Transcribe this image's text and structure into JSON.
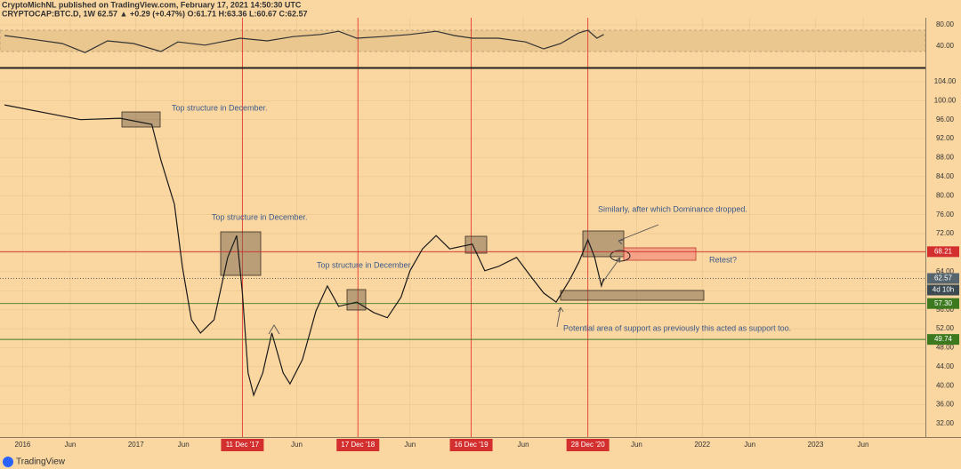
{
  "header": {
    "author": "CryptoMichNL published on TradingView.com, February 17, 2021 14:50:30 UTC",
    "symbol": "CRYPTOCAP:BTC.D, 1W 62.57 ▲ +0.29 (+0.47%) O:61.71 H:63.36 L:60.67 C:62.57"
  },
  "footer": {
    "logo": "TradingView"
  },
  "chart_data": [
    {
      "type": "line",
      "name": "RSI",
      "x": [
        2015.84,
        2016.12,
        2016.35,
        2016.55,
        2016.75,
        2016.98,
        2017.22,
        2017.37,
        2017.61,
        2017.92,
        2018.16,
        2018.39,
        2018.63,
        2018.79,
        2018.95,
        2019.18,
        2019.42,
        2019.65,
        2019.81,
        2019.97,
        2020.2,
        2020.44,
        2020.6,
        2020.75,
        2020.91,
        2020.99,
        2021.07,
        2021.13
      ],
      "series": [
        {
          "name": "RSI",
          "color": "#333333",
          "values": [
            60,
            52,
            45,
            28,
            50,
            45,
            30,
            48,
            42,
            55,
            50,
            58,
            62,
            68,
            55,
            58,
            62,
            68,
            60,
            55,
            55,
            48,
            35,
            45,
            65,
            70,
            55,
            62
          ]
        }
      ],
      "xlim": [
        2015.8,
        2023.97
      ],
      "ylim": [
        1.7,
        93.3
      ],
      "yticks": [
        {
          "value": 40,
          "label": "40.00"
        },
        {
          "value": 80,
          "label": "80.00"
        }
      ],
      "band": [
        30,
        70
      ]
    },
    {
      "type": "line",
      "name": "BTC.D",
      "x": [
        2015.84,
        2016.51,
        2016.86,
        2017.14,
        2017.22,
        2017.34,
        2017.41,
        2017.49,
        2017.57,
        2017.69,
        2017.81,
        2017.89,
        2017.94,
        2017.99,
        2018.04,
        2018.12,
        2018.2,
        2018.3,
        2018.36,
        2018.47,
        2018.59,
        2018.69,
        2018.79,
        2018.95,
        2019.1,
        2019.22,
        2019.34,
        2019.42,
        2019.53,
        2019.65,
        2019.77,
        2019.97,
        2020.08,
        2020.2,
        2020.36,
        2020.48,
        2020.6,
        2020.71,
        2020.83,
        2020.91,
        2020.99,
        2021.05,
        2021.11,
        2021.13
      ],
      "series": [
        {
          "name": "BTC.D",
          "color": "#1b1b1b",
          "values": [
            99.1,
            96.0,
            96.3,
            95.0,
            87.5,
            78.2,
            65.1,
            53.9,
            51.1,
            53.9,
            67.0,
            71.6,
            59.5,
            42.7,
            38.0,
            42.7,
            51.1,
            42.7,
            40.4,
            45.5,
            55.8,
            61.0,
            56.7,
            57.6,
            55.4,
            54.3,
            58.6,
            64.2,
            68.8,
            71.6,
            68.8,
            69.8,
            64.2,
            65.1,
            67.0,
            63.2,
            59.5,
            57.6,
            62.3,
            66.0,
            70.7,
            67.0,
            61.0,
            62.57
          ]
        }
      ],
      "xlim": [
        2015.8,
        2023.97
      ],
      "ylim": [
        29.2,
        106.6
      ],
      "yticks": [
        {
          "value": 32,
          "label": "32.00"
        },
        {
          "value": 36,
          "label": "36.00"
        },
        {
          "value": 40,
          "label": "40.00"
        },
        {
          "value": 44,
          "label": "44.00"
        },
        {
          "value": 48,
          "label": "48.00"
        },
        {
          "value": 52,
          "label": "52.00"
        },
        {
          "value": 56,
          "label": "56.00"
        },
        {
          "value": 60,
          "label": "60.00"
        },
        {
          "value": 64,
          "label": "64.00"
        },
        {
          "value": 68,
          "label": "68.00"
        },
        {
          "value": 72,
          "label": "72.00"
        },
        {
          "value": 76,
          "label": "76.00"
        },
        {
          "value": 80,
          "label": "80.00"
        },
        {
          "value": 84,
          "label": "84.00"
        },
        {
          "value": 88,
          "label": "88.00"
        },
        {
          "value": 92,
          "label": "92.00"
        },
        {
          "value": 96,
          "label": "96.00"
        },
        {
          "value": 100,
          "label": "100.00"
        },
        {
          "value": 104,
          "label": "104.00"
        }
      ],
      "xticks": [
        {
          "value": 2016,
          "label": "2016"
        },
        {
          "value": 2016.42,
          "label": "Jun"
        },
        {
          "value": 2017,
          "label": "2017"
        },
        {
          "value": 2017.42,
          "label": "Jun"
        },
        {
          "value": 2017.94,
          "label": "11 Dec '17",
          "highlight": true
        },
        {
          "value": 2018.42,
          "label": "Jun"
        },
        {
          "value": 2018.96,
          "label": "17 Dec '18",
          "highlight": true
        },
        {
          "value": 2019.42,
          "label": "Jun"
        },
        {
          "value": 2019.96,
          "label": "16 Dec '19",
          "highlight": true
        },
        {
          "value": 2020.42,
          "label": "Jun"
        },
        {
          "value": 2020.99,
          "label": "28 Dec '20",
          "highlight": true
        },
        {
          "value": 2021.42,
          "label": "Jun"
        },
        {
          "value": 2022,
          "label": "2022"
        },
        {
          "value": 2022.42,
          "label": "Jun"
        },
        {
          "value": 2023,
          "label": "2023"
        },
        {
          "value": 2023.42,
          "label": "Jun"
        }
      ],
      "price_lines": [
        {
          "value": 68.21,
          "label": "68.21",
          "color": "#d32f2f"
        },
        {
          "value": 62.57,
          "label": "62.57",
          "color": "#56656e",
          "dashed": true
        },
        {
          "value": 57.3,
          "label": "57.30",
          "color": "#3d7a1f"
        },
        {
          "value": 49.74,
          "label": "49.74",
          "color": "#3d7a1f"
        }
      ],
      "countdown": "4d 10h",
      "annotations": [
        "Top structure in December.",
        "Top structure in December.",
        "Top structure in December.",
        "Similarly, after which Dominance dropped.",
        "Retest?",
        "Potential area of support as previously this acted as support too."
      ]
    }
  ]
}
